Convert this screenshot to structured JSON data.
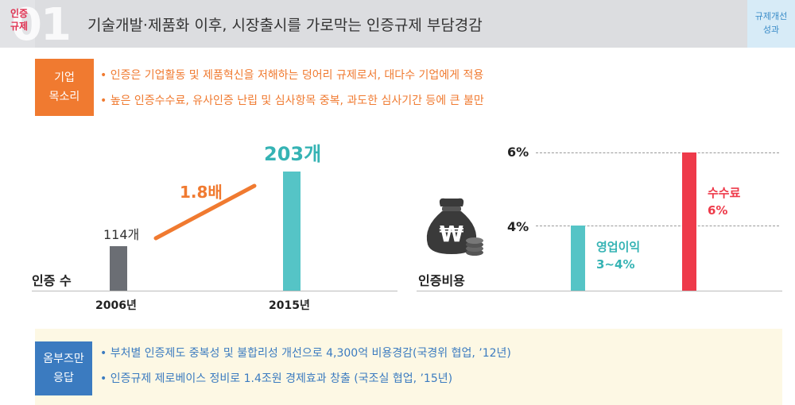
{
  "header": {
    "tag": "인증\n규제",
    "number": "01",
    "title": "기술개발·제품화 이후, 시장출시를 가로막는 인증규제 부담경감",
    "right_label": "규제개선\n성과"
  },
  "voice": {
    "label": "기업\n목소리",
    "bullets": [
      "• 인증은 기업활동 및 제품혁신을 저해하는 덩어리 규제로서, 대다수 기업에게 적용",
      "• 높은 인증수수료, 유사인증 난립 및 심사항목 중복, 과도한 심사기간 등에 큰 불만"
    ]
  },
  "chart_data": [
    {
      "type": "bar",
      "title": "인증 수",
      "categories": [
        "2006년",
        "2015년"
      ],
      "values": [
        114,
        203
      ],
      "data_labels": [
        "114개",
        "203개"
      ],
      "annotation": "1.8배",
      "colors": [
        "#6b6e74",
        "#55c4c6"
      ],
      "ylim": [
        0,
        230
      ]
    },
    {
      "type": "bar",
      "title": "인증비용",
      "categories": [
        "영업이익",
        "수수료"
      ],
      "values": [
        4,
        6
      ],
      "data_labels": [
        "영업이익\n3~4%",
        "수수료\n6%"
      ],
      "colors": [
        "#55c4c6",
        "#ee3a4a"
      ],
      "tick_labels": [
        "6%",
        "4%"
      ],
      "ylim": [
        0,
        6
      ]
    }
  ],
  "response": {
    "label": "옴부즈만\n응답",
    "bullets": [
      "• 부처별 인증제도 중복성 및 불합리성 개선으로 4,300억 비용경감(국경위 협업, ’12년)",
      "• 인증규제 제로베이스 정비로 1.4조원 경제효과 창출 (국조실 협업, ’15년)"
    ]
  },
  "colors": {
    "orange": "#f07a30",
    "teal": "#55c4c6",
    "red": "#ee3a4a",
    "blue": "#3b7bc0",
    "gray_bar": "#6b6e74"
  },
  "icons": [
    "money-bag-icon",
    "coin-stack-icon"
  ]
}
